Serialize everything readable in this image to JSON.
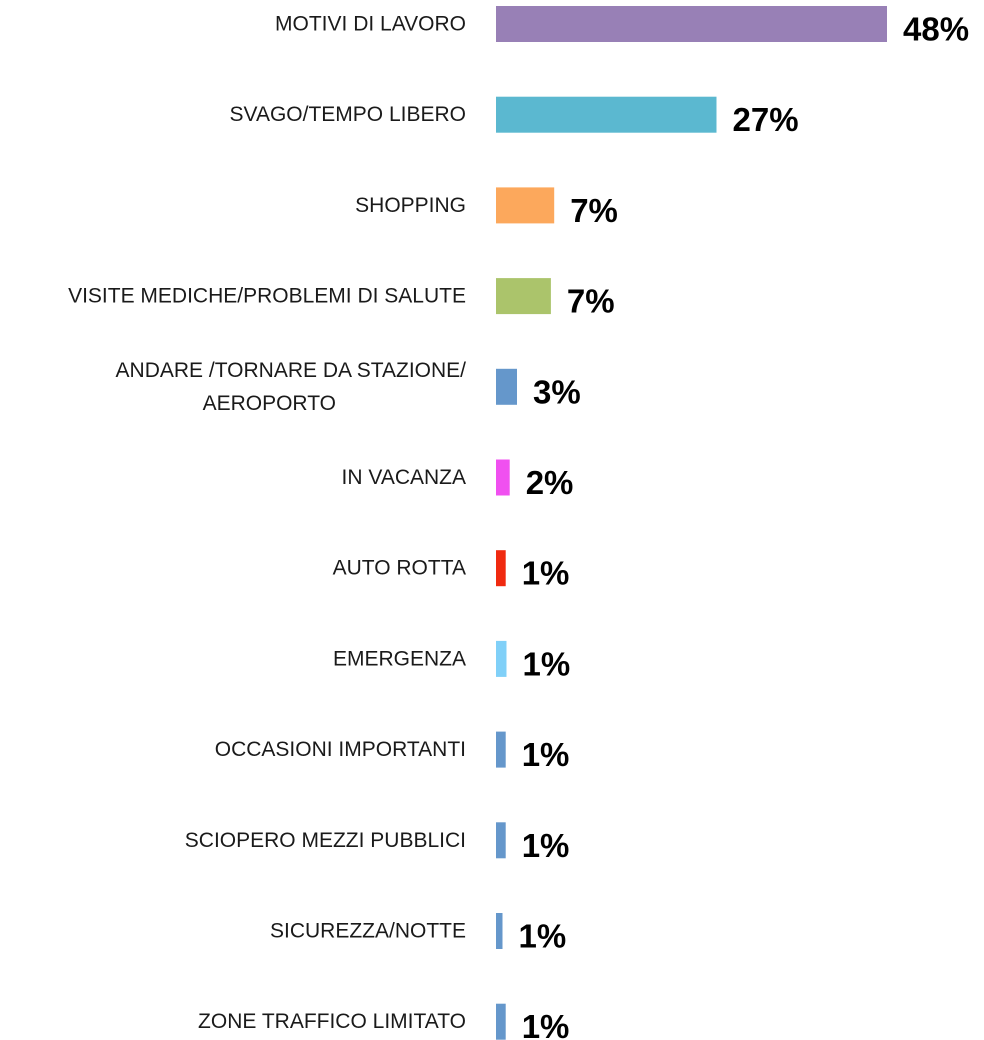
{
  "chart_data": {
    "type": "bar",
    "orientation": "horizontal",
    "categories": [
      "MOTIVI DI LAVORO",
      "SVAGO/TEMPO LIBERO",
      "SHOPPING",
      "VISITE MEDICHE/PROBLEMI DI SALUTE",
      "ANDARE /TORNARE DA STAZIONE/ AEROPORTO",
      "IN VACANZA",
      "AUTO ROTTA",
      "EMERGENZA",
      "OCCASIONI IMPORTANTI",
      "SCIOPERO MEZZI PUBBLICI",
      "SICUREZZA/NOTTE",
      "ZONE TRAFFICO LIMITATO"
    ],
    "category_lines": [
      [
        "MOTIVI DI LAVORO"
      ],
      [
        "SVAGO/TEMPO LIBERO"
      ],
      [
        "SHOPPING"
      ],
      [
        "VISITE MEDICHE/PROBLEMI DI SALUTE"
      ],
      [
        "ANDARE /TORNARE DA STAZIONE/",
        "AEROPORTO"
      ],
      [
        "IN VACANZA"
      ],
      [
        "AUTO ROTTA"
      ],
      [
        "EMERGENZA"
      ],
      [
        "OCCASIONI IMPORTANTI"
      ],
      [
        "SCIOPERO MEZZI PUBBLICI"
      ],
      [
        "SICUREZZA/NOTTE"
      ],
      [
        "ZONE TRAFFICO LIMITATO"
      ]
    ],
    "values": [
      48.4,
      27.3,
      7.2,
      6.8,
      2.6,
      1.7,
      1.2,
      1.3,
      1.2,
      1.2,
      0.8,
      1.2
    ],
    "value_labels": [
      "48%",
      "27%",
      "7%",
      "7%",
      "3%",
      "2%",
      "1%",
      "1%",
      "1%",
      "1%",
      "1%",
      "1%"
    ],
    "colors": [
      "#9880b6",
      "#5bb8d0",
      "#fca85c",
      "#abc46b",
      "#6597cb",
      "#f050f0",
      "#f02a10",
      "#80d0f8",
      "#6597cb",
      "#6597cb",
      "#6597cb",
      "#6597cb"
    ],
    "title": "",
    "xlabel": "",
    "ylabel": "",
    "xlim": [
      0,
      50
    ],
    "grid": false,
    "legend": "none",
    "data_labels": true
  }
}
